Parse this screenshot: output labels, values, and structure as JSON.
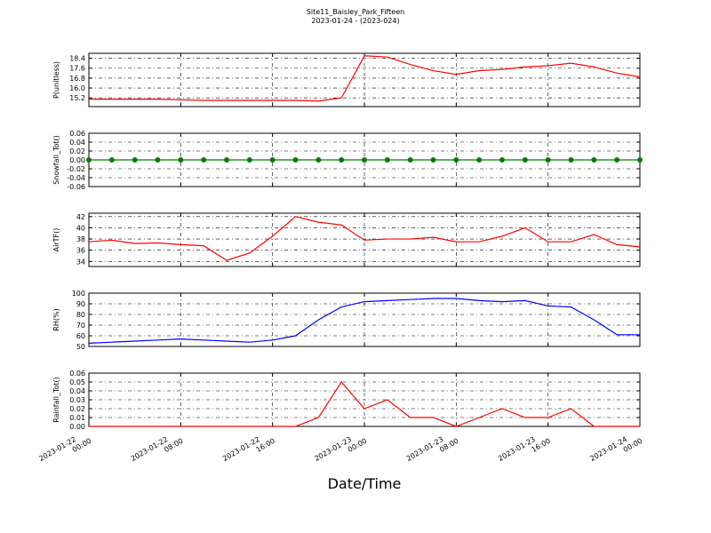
{
  "chart_data": [
    {
      "type": "line",
      "title": "Site11_Baisley_Park_Fifteen",
      "subtitle": "2023-01-24 - (2023-024)",
      "ylabel": "P(unitless)",
      "color": "#ff0000",
      "x": [
        "2023-01-22 00:00",
        "2023-01-22 02:00",
        "2023-01-22 04:00",
        "2023-01-22 06:00",
        "2023-01-22 08:00",
        "2023-01-22 10:00",
        "2023-01-22 12:00",
        "2023-01-22 14:00",
        "2023-01-22 16:00",
        "2023-01-22 18:00",
        "2023-01-22 20:00",
        "2023-01-22 22:00",
        "2023-01-23 00:00",
        "2023-01-23 02:00",
        "2023-01-23 04:00",
        "2023-01-23 06:00",
        "2023-01-23 08:00",
        "2023-01-23 10:00",
        "2023-01-23 12:00",
        "2023-01-23 14:00",
        "2023-01-23 16:00",
        "2023-01-23 18:00",
        "2023-01-23 20:00",
        "2023-01-23 22:00",
        "2023-01-24 00:00"
      ],
      "values": [
        15.1,
        15.1,
        15.1,
        15.1,
        15.05,
        15.0,
        15.0,
        15.0,
        15.0,
        15.0,
        14.95,
        15.2,
        18.6,
        18.5,
        17.9,
        17.4,
        17.1,
        17.4,
        17.5,
        17.7,
        17.8,
        18.0,
        17.7,
        17.2,
        16.9
      ],
      "xlim": [
        "2023-01-22 00:00",
        "2023-01-24 00:00"
      ],
      "xticks": [
        "2023-01-22 00:00",
        "2023-01-22 08:00",
        "2023-01-22 16:00",
        "2023-01-23 00:00",
        "2023-01-23 08:00",
        "2023-01-23 16:00",
        "2023-01-24 00:00"
      ],
      "ylim": [
        14.5,
        18.8
      ],
      "yticks": [
        15.2,
        {
          "value": 16.0,
          "label": "16.0"
        },
        16.8,
        17.6,
        18.4
      ],
      "grid": true
    },
    {
      "type": "line",
      "ylabel": "Snowfall_Tot()",
      "color": "#008000",
      "markers": true,
      "x": [
        "2023-01-22 00:00",
        "2023-01-22 02:00",
        "2023-01-22 04:00",
        "2023-01-22 06:00",
        "2023-01-22 08:00",
        "2023-01-22 10:00",
        "2023-01-22 12:00",
        "2023-01-22 14:00",
        "2023-01-22 16:00",
        "2023-01-22 18:00",
        "2023-01-22 20:00",
        "2023-01-22 22:00",
        "2023-01-23 00:00",
        "2023-01-23 02:00",
        "2023-01-23 04:00",
        "2023-01-23 06:00",
        "2023-01-23 08:00",
        "2023-01-23 10:00",
        "2023-01-23 12:00",
        "2023-01-23 14:00",
        "2023-01-23 16:00",
        "2023-01-23 18:00",
        "2023-01-23 20:00",
        "2023-01-23 22:00",
        "2023-01-24 00:00"
      ],
      "values": [
        0,
        0,
        0,
        0,
        0,
        0,
        0,
        0,
        0,
        0,
        0,
        0,
        0,
        0,
        0,
        0,
        0,
        0,
        0,
        0,
        0,
        0,
        0,
        0,
        0
      ],
      "xlim": [
        "2023-01-22 00:00",
        "2023-01-24 00:00"
      ],
      "xticks": [
        "2023-01-22 00:00",
        "2023-01-22 08:00",
        "2023-01-22 16:00",
        "2023-01-23 00:00",
        "2023-01-23 08:00",
        "2023-01-23 16:00",
        "2023-01-24 00:00"
      ],
      "ylim": [
        -0.06,
        0.06
      ],
      "yticks": [
        -0.06,
        -0.04,
        -0.02,
        {
          "value": 0,
          "label": "0.00"
        },
        0.02,
        0.04,
        0.06
      ],
      "grid": true
    },
    {
      "type": "line",
      "ylabel": "AirTF()",
      "color": "#ff0000",
      "x": [
        "2023-01-22 00:00",
        "2023-01-22 02:00",
        "2023-01-22 04:00",
        "2023-01-22 06:00",
        "2023-01-22 08:00",
        "2023-01-22 10:00",
        "2023-01-22 12:00",
        "2023-01-22 14:00",
        "2023-01-22 16:00",
        "2023-01-22 18:00",
        "2023-01-22 20:00",
        "2023-01-22 22:00",
        "2023-01-23 00:00",
        "2023-01-23 02:00",
        "2023-01-23 04:00",
        "2023-01-23 06:00",
        "2023-01-23 08:00",
        "2023-01-23 10:00",
        "2023-01-23 12:00",
        "2023-01-23 14:00",
        "2023-01-23 16:00",
        "2023-01-23 18:00",
        "2023-01-23 20:00",
        "2023-01-23 22:00",
        "2023-01-24 00:00"
      ],
      "values": [
        37.5,
        37.8,
        37.2,
        37.3,
        37.0,
        36.8,
        34.2,
        35.5,
        38.5,
        42.0,
        41.0,
        40.5,
        37.8,
        38.0,
        38.0,
        38.3,
        37.5,
        37.5,
        38.5,
        40.0,
        37.5,
        37.5,
        38.8,
        37.0,
        36.6
      ],
      "xlim": [
        "2023-01-22 00:00",
        "2023-01-24 00:00"
      ],
      "xticks": [
        "2023-01-22 00:00",
        "2023-01-22 08:00",
        "2023-01-22 16:00",
        "2023-01-23 00:00",
        "2023-01-23 08:00",
        "2023-01-23 16:00",
        "2023-01-24 00:00"
      ],
      "ylim": [
        33.1,
        42.6
      ],
      "yticks": [
        34,
        36,
        38,
        40,
        42
      ],
      "grid": true
    },
    {
      "type": "line",
      "ylabel": "RH(%)",
      "color": "#0000ff",
      "x": [
        "2023-01-22 00:00",
        "2023-01-22 02:00",
        "2023-01-22 04:00",
        "2023-01-22 06:00",
        "2023-01-22 08:00",
        "2023-01-22 10:00",
        "2023-01-22 12:00",
        "2023-01-22 14:00",
        "2023-01-22 16:00",
        "2023-01-22 18:00",
        "2023-01-22 20:00",
        "2023-01-22 22:00",
        "2023-01-23 00:00",
        "2023-01-23 02:00",
        "2023-01-23 04:00",
        "2023-01-23 06:00",
        "2023-01-23 08:00",
        "2023-01-23 10:00",
        "2023-01-23 12:00",
        "2023-01-23 14:00",
        "2023-01-23 16:00",
        "2023-01-23 18:00",
        "2023-01-23 20:00",
        "2023-01-23 22:00",
        "2023-01-24 00:00"
      ],
      "values": [
        53,
        54,
        55,
        56,
        57,
        56,
        55,
        54,
        56,
        60,
        75,
        87,
        92,
        93,
        94,
        95,
        95,
        93,
        92,
        93,
        88,
        87,
        75,
        61,
        61
      ],
      "xlim": [
        "2023-01-22 00:00",
        "2023-01-24 00:00"
      ],
      "xticks": [
        "2023-01-22 00:00",
        "2023-01-22 08:00",
        "2023-01-22 16:00",
        "2023-01-23 00:00",
        "2023-01-23 08:00",
        "2023-01-23 16:00",
        "2023-01-24 00:00"
      ],
      "ylim": [
        50,
        100
      ],
      "yticks": [
        50,
        60,
        70,
        80,
        90,
        100
      ],
      "grid": true
    },
    {
      "type": "line",
      "ylabel": "Rainfall_Tot()",
      "xlabel": "Date/Time",
      "color": "#ff0000",
      "x": [
        "2023-01-22 00:00",
        "2023-01-22 02:00",
        "2023-01-22 04:00",
        "2023-01-22 06:00",
        "2023-01-22 08:00",
        "2023-01-22 10:00",
        "2023-01-22 12:00",
        "2023-01-22 14:00",
        "2023-01-22 16:00",
        "2023-01-22 18:00",
        "2023-01-22 20:00",
        "2023-01-22 22:00",
        "2023-01-23 00:00",
        "2023-01-23 02:00",
        "2023-01-23 04:00",
        "2023-01-23 06:00",
        "2023-01-23 08:00",
        "2023-01-23 10:00",
        "2023-01-23 12:00",
        "2023-01-23 14:00",
        "2023-01-23 16:00",
        "2023-01-23 18:00",
        "2023-01-23 20:00",
        "2023-01-23 22:00",
        "2023-01-24 00:00"
      ],
      "values": [
        0,
        0,
        0,
        0,
        0,
        0,
        0,
        0,
        0,
        0,
        0.01,
        0.05,
        0.02,
        0.03,
        0.01,
        0.01,
        0,
        0.01,
        0.02,
        0.01,
        0.01,
        0.02,
        0,
        0,
        0
      ],
      "xlim": [
        "2023-01-22 00:00",
        "2023-01-24 00:00"
      ],
      "xticks": [
        "2023-01-22 00:00",
        "2023-01-22 08:00",
        "2023-01-22 16:00",
        "2023-01-23 00:00",
        "2023-01-23 08:00",
        "2023-01-23 16:00",
        "2023-01-24 00:00"
      ],
      "ylim": [
        0,
        0.06
      ],
      "yticks": [
        {
          "value": 0,
          "label": "0.00"
        },
        0.01,
        0.02,
        0.03,
        0.04,
        0.05,
        0.06
      ],
      "grid": true
    }
  ]
}
